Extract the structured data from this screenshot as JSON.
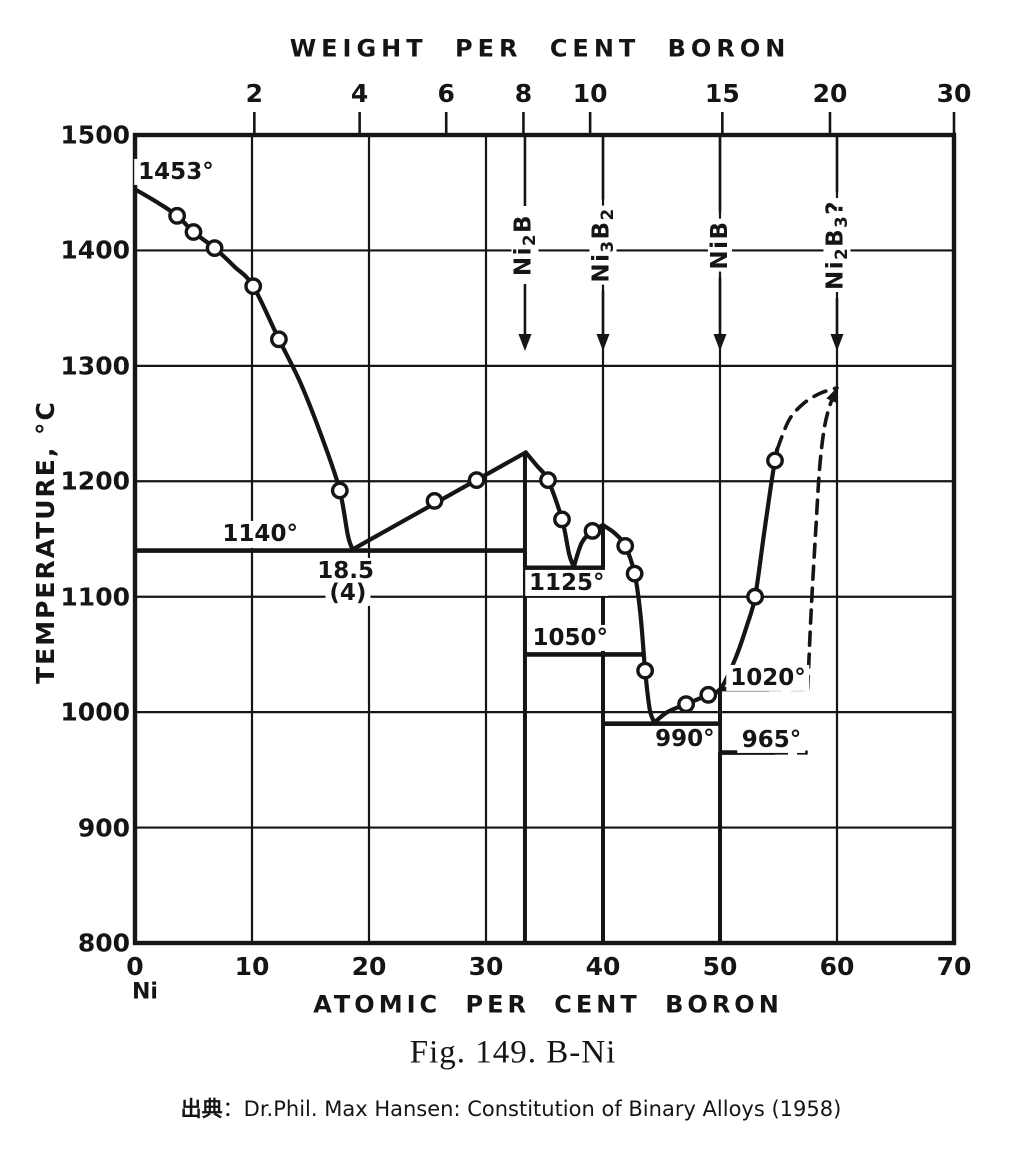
{
  "figure": {
    "source_prefix": "出典",
    "source_separator": "：",
    "source_text": "Dr.Phil. Max Hansen: Constitution of Binary Alloys (1958)",
    "ink_color": "#151515",
    "background_color": "#ffffff"
  },
  "chart_data": {
    "type": "line",
    "title": "Fig. 149. B-Ni",
    "x2label": "WEIGHT PER CENT BORON",
    "xlabel": "ATOMIC PER CENT BORON",
    "ylabel": "TEMPERATURE, °C",
    "x_unit_origin_label": "Ni",
    "xlim": [
      0,
      70
    ],
    "ylim": [
      800,
      1500
    ],
    "grid": true,
    "x_ticks": [
      0,
      10,
      20,
      30,
      40,
      50,
      60,
      70
    ],
    "y_ticks": [
      800,
      900,
      1000,
      1100,
      1200,
      1300,
      1400,
      1500
    ],
    "top_axis_ticks": [
      {
        "label": "2",
        "at_pct": 10.2
      },
      {
        "label": "4",
        "at_pct": 19.2
      },
      {
        "label": "6",
        "at_pct": 26.6
      },
      {
        "label": "8",
        "at_pct": 33.2
      },
      {
        "label": "10",
        "at_pct": 38.9
      },
      {
        "label": "15",
        "at_pct": 50.2
      },
      {
        "label": "20",
        "at_pct": 59.4
      },
      {
        "label": "30",
        "at_pct": 70.0
      }
    ],
    "series": [
      {
        "name": "liquidus-Ni",
        "style": "solid",
        "points": [
          [
            0,
            1453
          ],
          [
            2,
            1441
          ],
          [
            3.6,
            1430
          ],
          [
            5,
            1416
          ],
          [
            6.8,
            1402
          ],
          [
            8.5,
            1386
          ],
          [
            10.1,
            1369
          ],
          [
            12.3,
            1323
          ],
          [
            14.2,
            1284
          ],
          [
            16.2,
            1232
          ],
          [
            17.5,
            1192
          ],
          [
            18.2,
            1153
          ],
          [
            18.6,
            1141
          ]
        ]
      },
      {
        "name": "liquidus-eutectic-to-Ni2B",
        "style": "solid",
        "points": [
          [
            18.6,
            1141
          ],
          [
            33.4,
            1225
          ]
        ]
      },
      {
        "name": "liquidus-Ni2B-to-1125",
        "style": "solid",
        "points": [
          [
            33.4,
            1225
          ],
          [
            34.3,
            1214
          ],
          [
            35.3,
            1201
          ],
          [
            36.5,
            1167
          ],
          [
            37.1,
            1137
          ],
          [
            37.5,
            1126
          ]
        ]
      },
      {
        "name": "liquidus-1125-to-Ni3B2",
        "style": "solid",
        "points": [
          [
            37.5,
            1126
          ],
          [
            38.2,
            1147
          ],
          [
            39.1,
            1157
          ],
          [
            40,
            1162
          ]
        ]
      },
      {
        "name": "liquidus-Ni3B2-to-990",
        "style": "solid",
        "points": [
          [
            40,
            1162
          ],
          [
            41,
            1155
          ],
          [
            41.9,
            1144
          ],
          [
            42.7,
            1120
          ],
          [
            43.2,
            1085
          ],
          [
            43.6,
            1036
          ],
          [
            44,
            1002
          ],
          [
            44.4,
            991
          ]
        ]
      },
      {
        "name": "liquidus-990-to-NiB",
        "style": "solid",
        "points": [
          [
            44.4,
            991
          ],
          [
            45.5,
            1000
          ],
          [
            47.1,
            1007
          ],
          [
            49,
            1015
          ],
          [
            50.1,
            1021
          ],
          [
            51.3,
            1046
          ],
          [
            52.3,
            1075
          ],
          [
            53,
            1100
          ],
          [
            53.7,
            1150
          ],
          [
            54.35,
            1196
          ],
          [
            54.7,
            1218
          ],
          [
            54.9,
            1228
          ]
        ]
      },
      {
        "name": "liquidus-dashed-extrapolation",
        "style": "dashed",
        "points": [
          [
            54.9,
            1228
          ],
          [
            55.9,
            1253
          ],
          [
            57.1,
            1267
          ],
          [
            58.5,
            1276
          ],
          [
            60,
            1281
          ]
        ]
      },
      {
        "name": "NiB-boundary-dashed",
        "style": "dashed",
        "arrow_end": true,
        "points": [
          [
            57.5,
            1020
          ],
          [
            57.8,
            1090
          ],
          [
            58.2,
            1160
          ],
          [
            58.5,
            1210
          ],
          [
            58.9,
            1245
          ],
          [
            59.4,
            1266
          ],
          [
            60,
            1280
          ]
        ]
      }
    ],
    "experimental_points": [
      [
        3.6,
        1430
      ],
      [
        5,
        1416
      ],
      [
        6.8,
        1402
      ],
      [
        10.1,
        1369
      ],
      [
        12.3,
        1323
      ],
      [
        17.5,
        1192
      ],
      [
        25.6,
        1183
      ],
      [
        29.2,
        1201
      ],
      [
        35.3,
        1201
      ],
      [
        36.5,
        1167
      ],
      [
        39.1,
        1157
      ],
      [
        41.9,
        1144
      ],
      [
        42.7,
        1120
      ],
      [
        43.6,
        1036
      ],
      [
        47.1,
        1007
      ],
      [
        49,
        1015
      ],
      [
        53,
        1100
      ],
      [
        54.7,
        1218
      ]
    ],
    "invariant_lines": [
      {
        "name": "eutectic-1140",
        "T": 1140,
        "from": 0,
        "to": 33.3
      },
      {
        "name": "eutectic-1125",
        "T": 1125,
        "from": 33.4,
        "to": 40
      },
      {
        "name": "reaction-1050",
        "T": 1050,
        "from": 33.4,
        "to": 43.65
      },
      {
        "name": "eutectic-990",
        "T": 990,
        "from": 40.1,
        "to": 50
      },
      {
        "name": "peritectic-1020",
        "T": 1020,
        "from": 50.1,
        "to": 54.2,
        "dash_to": 57.5
      },
      {
        "name": "reaction-965",
        "T": 965,
        "from": 50.1,
        "to": 54.7,
        "dash_to": 57.5
      }
    ],
    "compound_lines": [
      {
        "name": "Ni2B-line",
        "at_pct": 33.33,
        "T_top": 1225
      },
      {
        "name": "Ni3B2-line",
        "at_pct": 40,
        "T_top": 1162
      },
      {
        "name": "NiB-line",
        "at_pct": 50,
        "T_top": 1021
      }
    ],
    "compound_markers": [
      {
        "name": "Ni2B",
        "at_pct": 33.33,
        "parts": [
          {
            "t": "Ni"
          },
          {
            "t": "2",
            "sub": true
          },
          {
            "t": "B"
          }
        ]
      },
      {
        "name": "Ni3B2",
        "at_pct": 40,
        "parts": [
          {
            "t": "Ni"
          },
          {
            "t": "3",
            "sub": true
          },
          {
            "t": "B"
          },
          {
            "t": "2",
            "sub": true
          }
        ]
      },
      {
        "name": "NiB",
        "at_pct": 50,
        "parts": [
          {
            "t": "NiB"
          }
        ]
      },
      {
        "name": "Ni2B3?",
        "at_pct": 60,
        "parts": [
          {
            "t": "Ni"
          },
          {
            "t": "2",
            "sub": true
          },
          {
            "t": "B"
          },
          {
            "t": "3",
            "sub": true
          },
          {
            "t": "?"
          }
        ]
      }
    ],
    "annotations": [
      {
        "text": "1453°",
        "at": 3.5,
        "T": 1468
      },
      {
        "text": "1140°",
        "at": 10.7,
        "T": 1154
      },
      {
        "text": "18.5",
        "at": 18.0,
        "T": 1122
      },
      {
        "text": "(4)",
        "at": 18.2,
        "T": 1103
      },
      {
        "text": "1125°",
        "at": 36.9,
        "T": 1112
      },
      {
        "text": "1050°",
        "at": 37.2,
        "T": 1064
      },
      {
        "text": "1020°",
        "at": 54.1,
        "T": 1030
      },
      {
        "text": "990°",
        "at": 47.0,
        "T": 977
      },
      {
        "text": "965°",
        "at": 54.4,
        "T": 976
      }
    ]
  }
}
